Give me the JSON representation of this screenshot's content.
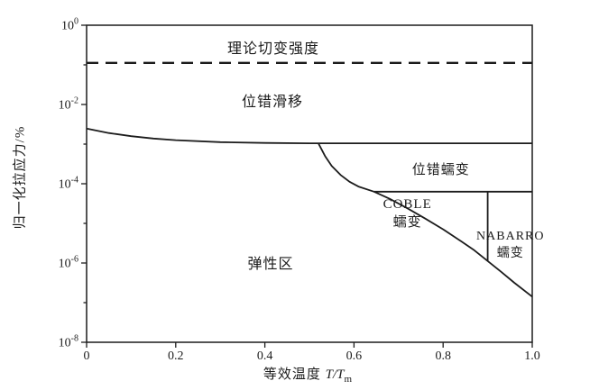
{
  "figure": {
    "bg": "#ffffff",
    "ink": "#1c1c1c"
  },
  "chart_data": {
    "type": "line",
    "title": "",
    "description": "Deformation mechanism map: normalized tensile stress (log scale) vs equivalent temperature T/Tm",
    "ylabel": "归一化拉应力/%",
    "xlabel_prefix": "等效温度 ",
    "xlabel_var": "T/T",
    "xlabel_sub": "m",
    "grid": false,
    "legend": "none",
    "x_axis": {
      "min": 0,
      "max": 1.0,
      "ticks": [
        {
          "t": 0,
          "label": "0"
        },
        {
          "t": 0.2,
          "label": "0.2"
        },
        {
          "t": 0.4,
          "label": "0.4"
        },
        {
          "t": 0.6,
          "label": "0.6"
        },
        {
          "t": 0.8,
          "label": "0.8"
        },
        {
          "t": 1.0,
          "label": "1.0"
        }
      ]
    },
    "y_axis": {
      "scale": "log",
      "log_min": -8,
      "log_max": 0,
      "ticks": [
        {
          "logv": 0,
          "exp": "0",
          "major": true
        },
        {
          "logv": -1,
          "major": false
        },
        {
          "logv": -2,
          "exp": "-2",
          "major": true
        },
        {
          "logv": -3,
          "major": false
        },
        {
          "logv": -4,
          "exp": "-4",
          "major": true
        },
        {
          "logv": -5,
          "major": false
        },
        {
          "logv": -6,
          "exp": "-6",
          "major": true
        },
        {
          "logv": -7,
          "major": false
        },
        {
          "logv": -8,
          "exp": "-8",
          "major": true
        }
      ]
    },
    "boundaries": [
      {
        "name": "theoretical-shear-strength-line",
        "dashed": true,
        "width": 2.4,
        "points": [
          [
            0,
            -0.95
          ],
          [
            1.0,
            -0.95
          ]
        ]
      },
      {
        "name": "dislocation-glide-lower-boundary",
        "dashed": false,
        "width": 1.8,
        "points": [
          [
            0,
            -2.61
          ],
          [
            0.05,
            -2.72
          ],
          [
            0.1,
            -2.8
          ],
          [
            0.15,
            -2.86
          ],
          [
            0.2,
            -2.9
          ],
          [
            0.3,
            -2.95
          ],
          [
            0.4,
            -2.97
          ],
          [
            0.5,
            -2.98
          ],
          [
            0.6,
            -2.98
          ],
          [
            0.7,
            -2.98
          ],
          [
            0.8,
            -2.98
          ],
          [
            0.9,
            -2.98
          ],
          [
            1.0,
            -2.98
          ]
        ]
      },
      {
        "name": "elastic-creep-boundary-curve",
        "dashed": false,
        "width": 1.8,
        "points": [
          [
            0.52,
            -2.98
          ],
          [
            0.535,
            -3.3
          ],
          [
            0.55,
            -3.55
          ],
          [
            0.57,
            -3.78
          ],
          [
            0.59,
            -3.95
          ],
          [
            0.61,
            -4.07
          ],
          [
            0.645,
            -4.2
          ],
          [
            0.68,
            -4.38
          ],
          [
            0.72,
            -4.62
          ],
          [
            0.76,
            -4.88
          ],
          [
            0.8,
            -5.15
          ],
          [
            0.84,
            -5.45
          ],
          [
            0.87,
            -5.68
          ],
          [
            0.9,
            -5.95
          ],
          [
            0.93,
            -6.22
          ],
          [
            0.96,
            -6.5
          ],
          [
            1.0,
            -6.85
          ]
        ]
      },
      {
        "name": "dislocation-creep-diffusional-creep-boundary",
        "dashed": false,
        "width": 1.8,
        "points": [
          [
            0.645,
            -4.2
          ],
          [
            1.0,
            -4.2
          ]
        ]
      },
      {
        "name": "coble-nabarro-divider",
        "dashed": false,
        "width": 1.8,
        "points": [
          [
            0.9,
            -4.2
          ],
          [
            0.9,
            -5.95
          ]
        ]
      }
    ],
    "regions": [
      {
        "id": "theoretical-strength-label",
        "text": "理论切变强度",
        "t": 0.419,
        "logv": -0.61,
        "font": 16
      },
      {
        "id": "dislocation-glide-label",
        "text": "位错滑移",
        "t": 0.417,
        "logv": -1.96,
        "font": 16
      },
      {
        "id": "dislocation-creep-label",
        "text": "位错蠕变",
        "t": 0.795,
        "logv": -3.66,
        "font": 15
      },
      {
        "id": "coble-creep-label",
        "text": "COBLE\n蠕变",
        "t": 0.72,
        "logv": -4.75,
        "font": 15
      },
      {
        "id": "nabarro-creep-label",
        "text": "NABARRO\n蠕变",
        "t": 0.951,
        "logv": -5.56,
        "font": 14
      },
      {
        "id": "elastic-region-label",
        "text": "弹性区",
        "t": 0.413,
        "logv": -6.05,
        "font": 16
      }
    ]
  }
}
